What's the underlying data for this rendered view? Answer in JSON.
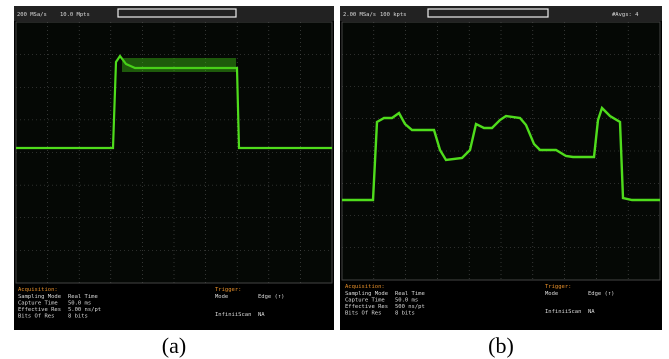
{
  "panels": [
    {
      "header": {
        "rate": "200 MSa/s",
        "points": "10.0 Mpts"
      },
      "acquisition": {
        "title": "Acquisition:",
        "rows": [
          [
            "Sampling Mode",
            "Real Time"
          ],
          [
            "Capture Time",
            "50.0 ms"
          ],
          [
            "Effective Res",
            "5.00 ns/pt"
          ],
          [
            "Bits Of Res",
            "8 bits"
          ]
        ]
      },
      "trigger": {
        "title": "Trigger:",
        "mode_label": "Mode",
        "mode_value": "Edge (↑)",
        "scan_label": "InfiniiScan",
        "scan_value": "NA"
      },
      "caption": "(a)"
    },
    {
      "header": {
        "rate": "2.00 MSa/s",
        "points": "100 kpts",
        "avgs": "#Avgs: 4"
      },
      "acquisition": {
        "title": "Acquisition:",
        "rows": [
          [
            "Sampling Mode",
            "Real Time"
          ],
          [
            "Capture Time",
            "50.0 ms"
          ],
          [
            "Effective Res",
            "500 ns/pt"
          ],
          [
            "Bits Of Res",
            "8 bits"
          ]
        ]
      },
      "trigger": {
        "title": "Trigger:",
        "mode_label": "Mode",
        "mode_value": "Edge (↑)",
        "scan_label": "InfiniiScan",
        "scan_value": "NA"
      },
      "caption": "(b)"
    }
  ]
}
